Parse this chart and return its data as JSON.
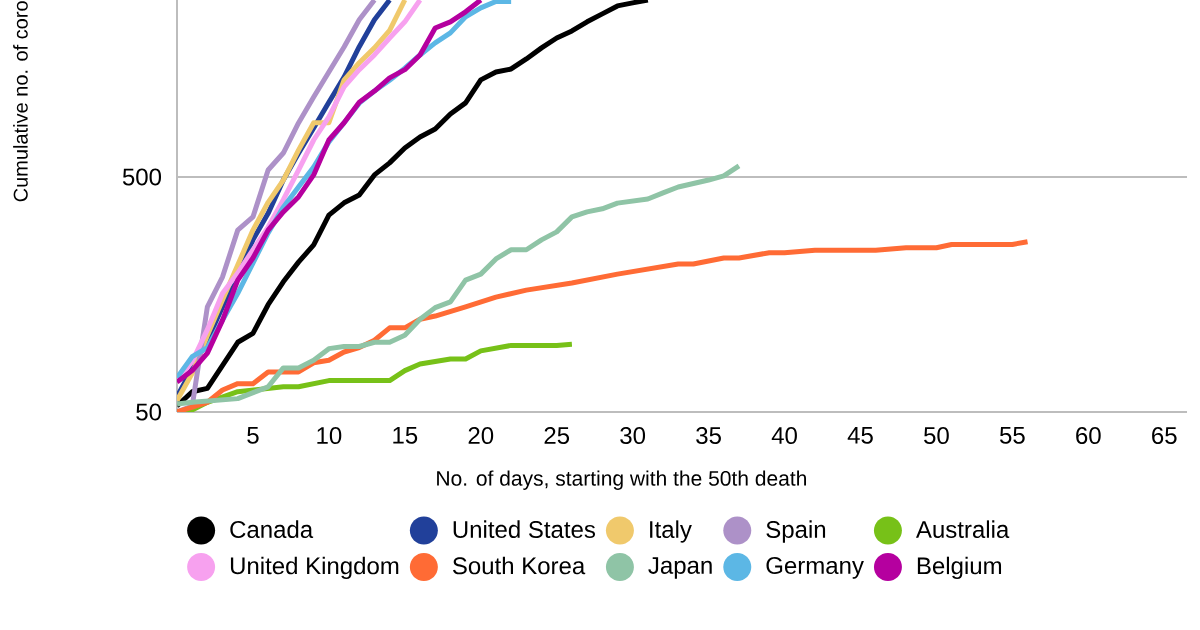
{
  "chart_data": {
    "type": "line",
    "xlabel": "No. of days, starting with the 50th death",
    "ylabel": "Cumulative no. of coro",
    "xlim": [
      0,
      66.5
    ],
    "xticks": [
      5,
      10,
      15,
      20,
      25,
      30,
      35,
      40,
      45,
      50,
      55,
      60,
      65
    ],
    "ylim": [
      50,
      2830
    ],
    "yticks": [
      50,
      500
    ],
    "log": "y",
    "grid": "y",
    "legend": "bottom",
    "series": [
      {
        "name": "Canada",
        "color": "#000000",
        "x": [
          0,
          1,
          2,
          3,
          4,
          5,
          6,
          7,
          8,
          9,
          10,
          11,
          12,
          13,
          14,
          15,
          16,
          17,
          18,
          19,
          20,
          21,
          22,
          23,
          24,
          25,
          26,
          27,
          28,
          29,
          30,
          31
        ],
        "values": [
          53,
          61,
          63,
          79,
          99,
          108,
          143,
          179,
          217,
          257,
          344,
          388,
          419,
          510,
          574,
          664,
          740,
          800,
          927,
          1033,
          1294,
          1398,
          1440,
          1589,
          1770,
          1950,
          2090,
          2285,
          2470,
          2670,
          2750,
          2830
        ]
      },
      {
        "name": "United States",
        "color": "#21409a",
        "x": [
          0,
          1,
          2,
          3,
          4,
          5,
          6,
          7,
          8,
          9,
          10,
          11,
          12,
          13,
          14
        ],
        "values": [
          58,
          null,
          101,
          null,
          null,
          270,
          350,
          485,
          630,
          808,
          1040,
          1330,
          1790,
          2330,
          2830
        ]
      },
      {
        "name": "Italy",
        "color": "#f0c96c",
        "x": [
          0,
          1,
          2,
          3,
          4,
          5,
          6,
          7,
          8,
          9,
          10,
          11,
          12,
          13,
          14,
          15
        ],
        "values": [
          56,
          73,
          106,
          150,
          211,
          297,
          390,
          485,
          650,
          850,
          850,
          1290,
          1530,
          1770,
          2100,
          2830
        ]
      },
      {
        "name": "Spain",
        "color": "#ad91c8",
        "x": [
          0,
          1,
          2,
          3,
          4,
          5,
          6,
          7,
          8,
          9,
          10,
          11,
          12,
          13
        ],
        "values": [
          50,
          53,
          140,
          188,
          297,
          338,
          535,
          632,
          849,
          1094,
          1398,
          1786,
          2330,
          2830
        ]
      },
      {
        "name": "Australia",
        "color": "#77c118",
        "x": [
          0,
          1,
          2,
          4,
          7,
          8,
          10,
          14,
          15,
          16,
          18,
          19,
          20,
          22,
          25,
          26
        ],
        "values": [
          50,
          51,
          55,
          61,
          64,
          64,
          68,
          68,
          75,
          80,
          84,
          84,
          91,
          96,
          96,
          97
        ]
      },
      {
        "name": "United Kingdom",
        "color": "#f7a1ef",
        "x": [
          0,
          1,
          2,
          3,
          4,
          5,
          6,
          7,
          8,
          9,
          10,
          11,
          12,
          13,
          14,
          15,
          16
        ],
        "values": [
          68,
          82,
          112,
          160,
          195,
          245,
          306,
          400,
          535,
          718,
          900,
          1208,
          1430,
          1652,
          1950,
          2285,
          2830
        ]
      },
      {
        "name": "South Korea",
        "color": "#ff6b35",
        "x": [
          0,
          2,
          3,
          4,
          5,
          6,
          8,
          9,
          10,
          11,
          12,
          13,
          14,
          15,
          16,
          17,
          19,
          21,
          23,
          26,
          29,
          33,
          34,
          36,
          37,
          39,
          40,
          42,
          46,
          48,
          50,
          51,
          55,
          56
        ],
        "values": [
          50,
          55,
          62,
          66,
          66,
          74,
          74,
          81,
          83,
          90,
          94,
          101,
          114,
          114,
          124,
          128,
          140,
          154,
          165,
          177,
          193,
          213,
          213,
          226,
          226,
          238,
          238,
          244,
          244,
          250,
          250,
          258,
          258,
          265
        ]
      },
      {
        "name": "Japan",
        "color": "#8fc4a6",
        "x": [
          0,
          1,
          4,
          6,
          7,
          8,
          9,
          10,
          11,
          12,
          13,
          14,
          15,
          16,
          17,
          18,
          19,
          20,
          21,
          22,
          23,
          24,
          25,
          26,
          27,
          28,
          29,
          31,
          32,
          33,
          35,
          36,
          37
        ],
        "values": [
          54,
          55,
          57,
          64,
          77,
          77,
          83,
          93,
          95,
          95,
          99,
          99,
          106,
          124,
          139,
          147,
          182,
          193,
          224,
          245,
          245,
          270,
          292,
          338,
          355,
          366,
          387,
          403,
          428,
          453,
          485,
          505,
          557
        ]
      },
      {
        "name": "Germany",
        "color": "#5cb7e5",
        "x": [
          0,
          1,
          2,
          3,
          4,
          5,
          6,
          7,
          8,
          9,
          10,
          11,
          12,
          13,
          14,
          15,
          16,
          17,
          18,
          19,
          20,
          21,
          22
        ],
        "values": [
          70,
          86,
          94,
          123,
          160,
          215,
          289,
          372,
          453,
          551,
          705,
          850,
          1030,
          1160,
          1290,
          1450,
          1652,
          1860,
          2050,
          2400,
          2620,
          2790,
          2790
        ]
      },
      {
        "name": "Belgium",
        "color": "#b5009f",
        "x": [
          0,
          1,
          2,
          3,
          4,
          5,
          6,
          7,
          8,
          9,
          10,
          11,
          12,
          13,
          14,
          15,
          16,
          17,
          18,
          19,
          20
        ],
        "values": [
          67,
          75,
          89,
          123,
          182,
          226,
          297,
          355,
          411,
          510,
          718,
          850,
          1040,
          1160,
          1320,
          1430,
          1652,
          2150,
          2285,
          2520,
          2830
        ]
      }
    ]
  }
}
